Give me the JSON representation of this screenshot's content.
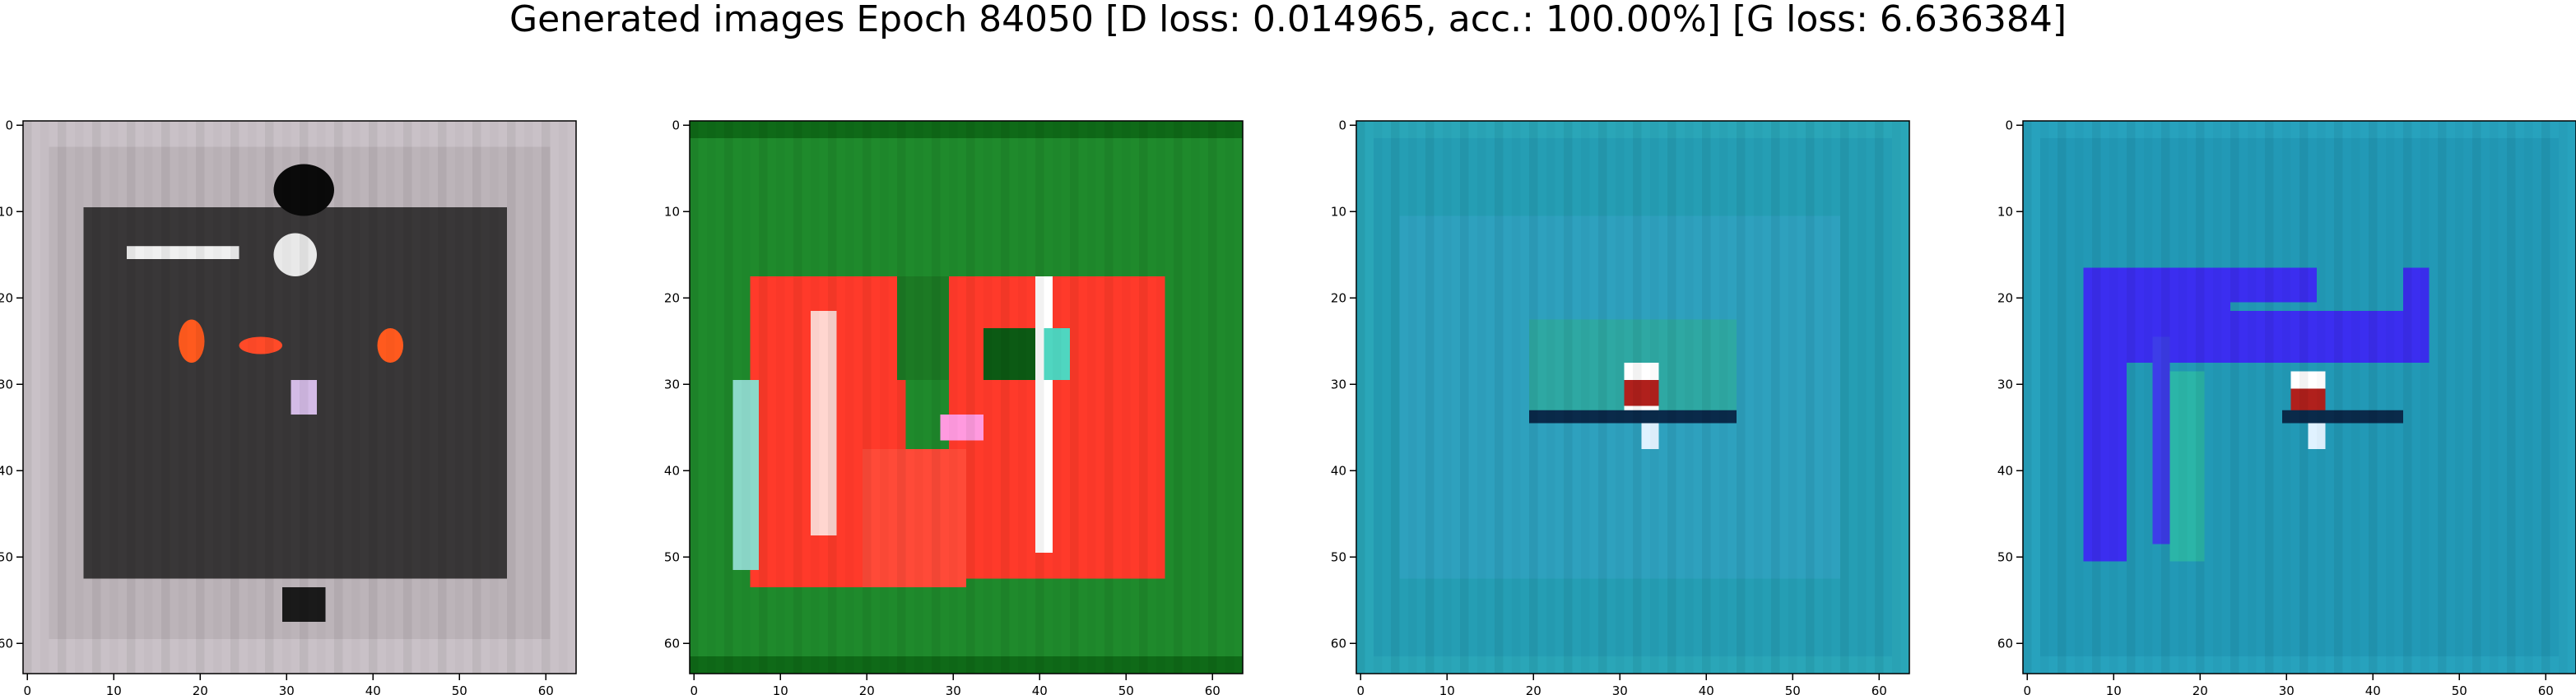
{
  "figure": {
    "title": "Generated images Epoch 84050 [D loss: 0.014965, acc.: 100.00%] [G loss: 6.636384]"
  },
  "chart_data": [
    {
      "type": "heatmap",
      "panel": 1,
      "xlim": [
        0,
        64
      ],
      "ylim": [
        64,
        0
      ],
      "xticks": [
        0,
        10,
        20,
        30,
        40,
        50,
        60
      ],
      "yticks": [
        0,
        10,
        20,
        30,
        40,
        50,
        60
      ],
      "background": "#c9c1c7",
      "regions": [
        {
          "shape": "rect",
          "x": [
            7,
            56
          ],
          "y": [
            10,
            53
          ],
          "color": "#000000"
        },
        {
          "shape": "rect",
          "x": [
            3,
            61
          ],
          "y": [
            3,
            60
          ],
          "color": "#a39da1",
          "opacity": 0.35
        },
        {
          "shape": "ellipse",
          "x": [
            29,
            36
          ],
          "y": [
            5,
            11
          ],
          "color": "#0a0a0a"
        },
        {
          "shape": "ellipse",
          "x": [
            29,
            34
          ],
          "y": [
            13,
            18
          ],
          "color": "#e9e9e9"
        },
        {
          "shape": "rect",
          "x": [
            12,
            25
          ],
          "y": [
            14.5,
            16
          ],
          "color": "#f0f0f0"
        },
        {
          "shape": "ellipse",
          "x": [
            18,
            21
          ],
          "y": [
            23,
            28
          ],
          "color": "#ff5a1e"
        },
        {
          "shape": "ellipse",
          "x": [
            25,
            30
          ],
          "y": [
            25,
            27
          ],
          "color": "#ff4a28"
        },
        {
          "shape": "ellipse",
          "x": [
            41,
            44
          ],
          "y": [
            24,
            28
          ],
          "color": "#ff5a1e"
        },
        {
          "shape": "rect",
          "x": [
            31,
            34
          ],
          "y": [
            30,
            34
          ],
          "color": "#d4bbe6"
        },
        {
          "shape": "rect",
          "x": [
            30,
            35
          ],
          "y": [
            54,
            58
          ],
          "color": "#1a1a1a"
        }
      ]
    },
    {
      "type": "heatmap",
      "panel": 2,
      "xlim": [
        0,
        64
      ],
      "ylim": [
        64,
        0
      ],
      "xticks": [
        0,
        10,
        20,
        30,
        40,
        50,
        60
      ],
      "yticks": [
        0,
        10,
        20,
        30,
        40,
        50,
        60
      ],
      "background": "#1f8a2c",
      "regions": [
        {
          "shape": "rect",
          "x": [
            0,
            64
          ],
          "y": [
            0,
            2
          ],
          "color": "#0f6a18"
        },
        {
          "shape": "rect",
          "x": [
            0,
            64
          ],
          "y": [
            62,
            64
          ],
          "color": "#0f6a18"
        },
        {
          "shape": "rect",
          "x": [
            7,
            25
          ],
          "y": [
            18,
            54
          ],
          "color": "#ff3a2a"
        },
        {
          "shape": "rect",
          "x": [
            30,
            55
          ],
          "y": [
            18,
            53
          ],
          "color": "#ff3a2a"
        },
        {
          "shape": "rect",
          "x": [
            20,
            32
          ],
          "y": [
            38,
            54
          ],
          "color": "#ff4a38"
        },
        {
          "shape": "rect",
          "x": [
            14,
            17
          ],
          "y": [
            22,
            48
          ],
          "color": "#ffd6d0"
        },
        {
          "shape": "rect",
          "x": [
            40,
            42
          ],
          "y": [
            18,
            50
          ],
          "color": "#ffffff"
        },
        {
          "shape": "rect",
          "x": [
            24,
            30
          ],
          "y": [
            18,
            30
          ],
          "color": "#1c7a24"
        },
        {
          "shape": "rect",
          "x": [
            34,
            40
          ],
          "y": [
            24,
            30
          ],
          "color": "#0c5a14"
        },
        {
          "shape": "rect",
          "x": [
            5,
            8
          ],
          "y": [
            30,
            52
          ],
          "color": "#8cd9c9"
        },
        {
          "shape": "rect",
          "x": [
            41,
            44
          ],
          "y": [
            24,
            30
          ],
          "color": "#4fd6c0"
        },
        {
          "shape": "rect",
          "x": [
            29,
            34
          ],
          "y": [
            34,
            37
          ],
          "color": "#ff9adf"
        }
      ]
    },
    {
      "type": "heatmap",
      "panel": 3,
      "xlim": [
        0,
        64
      ],
      "ylim": [
        64,
        0
      ],
      "xticks": [
        0,
        10,
        20,
        30,
        40,
        50,
        60
      ],
      "yticks": [
        0,
        10,
        20,
        30,
        40,
        50,
        60
      ],
      "background": "#2aa6b8",
      "regions": [
        {
          "shape": "rect",
          "x": [
            2,
            62
          ],
          "y": [
            2,
            62
          ],
          "color": "#1f95b0",
          "opacity": 0.5
        },
        {
          "shape": "rect",
          "x": [
            5,
            56
          ],
          "y": [
            11,
            53
          ],
          "color": "#35a3c4",
          "opacity": 0.6
        },
        {
          "shape": "rect",
          "x": [
            20,
            44
          ],
          "y": [
            23,
            35
          ],
          "color": "#2fae8c",
          "opacity": 0.55
        },
        {
          "shape": "rect",
          "x": [
            31,
            35
          ],
          "y": [
            28,
            34
          ],
          "color": "#ffffff"
        },
        {
          "shape": "rect",
          "x": [
            31,
            35
          ],
          "y": [
            30,
            33
          ],
          "color": "#b0201c"
        },
        {
          "shape": "rect",
          "x": [
            33,
            35
          ],
          "y": [
            34,
            38
          ],
          "color": "#e0f2ff"
        },
        {
          "shape": "rect",
          "x": [
            20,
            44
          ],
          "y": [
            33.5,
            35
          ],
          "color": "#0a2a4a"
        }
      ]
    },
    {
      "type": "heatmap",
      "panel": 4,
      "xlim": [
        0,
        64
      ],
      "ylim": [
        64,
        0
      ],
      "xticks": [
        0,
        10,
        20,
        30,
        40,
        50,
        60
      ],
      "yticks": [
        0,
        10,
        20,
        30,
        40,
        50,
        60
      ],
      "background": "#27a2bd",
      "regions": [
        {
          "shape": "rect",
          "x": [
            2,
            62
          ],
          "y": [
            2,
            62
          ],
          "color": "#1e8fb0",
          "opacity": 0.5
        },
        {
          "shape": "rect",
          "x": [
            7,
            24
          ],
          "y": [
            17,
            28
          ],
          "color": "#3b2ef0"
        },
        {
          "shape": "rect",
          "x": [
            23,
            47
          ],
          "y": [
            22,
            28
          ],
          "color": "#3b2ef0"
        },
        {
          "shape": "rect",
          "x": [
            23,
            34
          ],
          "y": [
            17,
            21
          ],
          "color": "#3b2ef0"
        },
        {
          "shape": "rect",
          "x": [
            44,
            47
          ],
          "y": [
            17,
            28
          ],
          "color": "#3b2ef0"
        },
        {
          "shape": "rect",
          "x": [
            7,
            12
          ],
          "y": [
            28,
            51
          ],
          "color": "#3b2ef0"
        },
        {
          "shape": "rect",
          "x": [
            15,
            17
          ],
          "y": [
            25,
            49
          ],
          "color": "#3d3de8"
        },
        {
          "shape": "rect",
          "x": [
            17,
            21
          ],
          "y": [
            29,
            51
          ],
          "color": "#2bb5a8"
        },
        {
          "shape": "rect",
          "x": [
            31,
            35
          ],
          "y": [
            29,
            35
          ],
          "color": "#ffffff"
        },
        {
          "shape": "rect",
          "x": [
            31,
            35
          ],
          "y": [
            31,
            34
          ],
          "color": "#b0201c"
        },
        {
          "shape": "rect",
          "x": [
            33,
            35
          ],
          "y": [
            35,
            38
          ],
          "color": "#e0f2ff"
        },
        {
          "shape": "rect",
          "x": [
            30,
            44
          ],
          "y": [
            33.5,
            35
          ],
          "color": "#0a2a4a"
        }
      ]
    }
  ]
}
